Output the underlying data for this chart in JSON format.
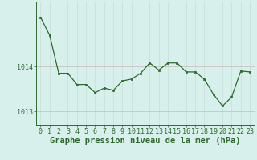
{
  "x": [
    0,
    1,
    2,
    3,
    4,
    5,
    6,
    7,
    8,
    9,
    10,
    11,
    12,
    13,
    14,
    15,
    16,
    17,
    18,
    19,
    20,
    21,
    22,
    23
  ],
  "y": [
    1015.1,
    1014.7,
    1013.85,
    1013.85,
    1013.6,
    1013.6,
    1013.42,
    1013.52,
    1013.47,
    1013.68,
    1013.72,
    1013.85,
    1014.08,
    1013.92,
    1014.08,
    1014.08,
    1013.88,
    1013.88,
    1013.72,
    1013.38,
    1013.12,
    1013.32,
    1013.9,
    1013.88
  ],
  "line_color": "#2d6a2d",
  "marker_color": "#2d6a2d",
  "bg_color": "#d8f0ec",
  "grid_color_v": "#c8dcd8",
  "grid_color_h": "#c8b8b8",
  "axis_color": "#2d6a2d",
  "tick_color": "#2d6a2d",
  "label_color": "#2d6a2d",
  "xlabel": "Graphe pression niveau de la mer (hPa)",
  "ytick_labels": [
    "1013",
    "1014"
  ],
  "ytick_values": [
    1013.0,
    1014.0
  ],
  "ylim": [
    1012.7,
    1015.45
  ],
  "xlim": [
    -0.5,
    23.5
  ],
  "label_fontsize": 7.5,
  "tick_fontsize": 6.0
}
